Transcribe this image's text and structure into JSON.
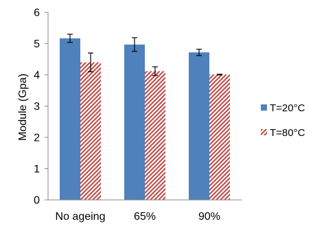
{
  "chart_data": {
    "type": "bar",
    "title": "",
    "xlabel": "",
    "ylabel": "Module (Gpa)",
    "categories": [
      "No ageing",
      "65%",
      "90%"
    ],
    "ylim": [
      0,
      6
    ],
    "yticks": [
      0,
      1,
      2,
      3,
      4,
      5,
      6
    ],
    "grid": false,
    "legend_position": "right",
    "series": [
      {
        "name": "T=20°C",
        "values": [
          5.17,
          4.97,
          4.72
        ],
        "errors": [
          0.13,
          0.22,
          0.1
        ],
        "color": "#4f81bd",
        "fill": "solid"
      },
      {
        "name": "T=80°C",
        "values": [
          4.4,
          4.12,
          4.01
        ],
        "errors": [
          0.3,
          0.14,
          0.01
        ],
        "color": "#c0504d",
        "fill": "diagonal-hatch"
      }
    ]
  }
}
